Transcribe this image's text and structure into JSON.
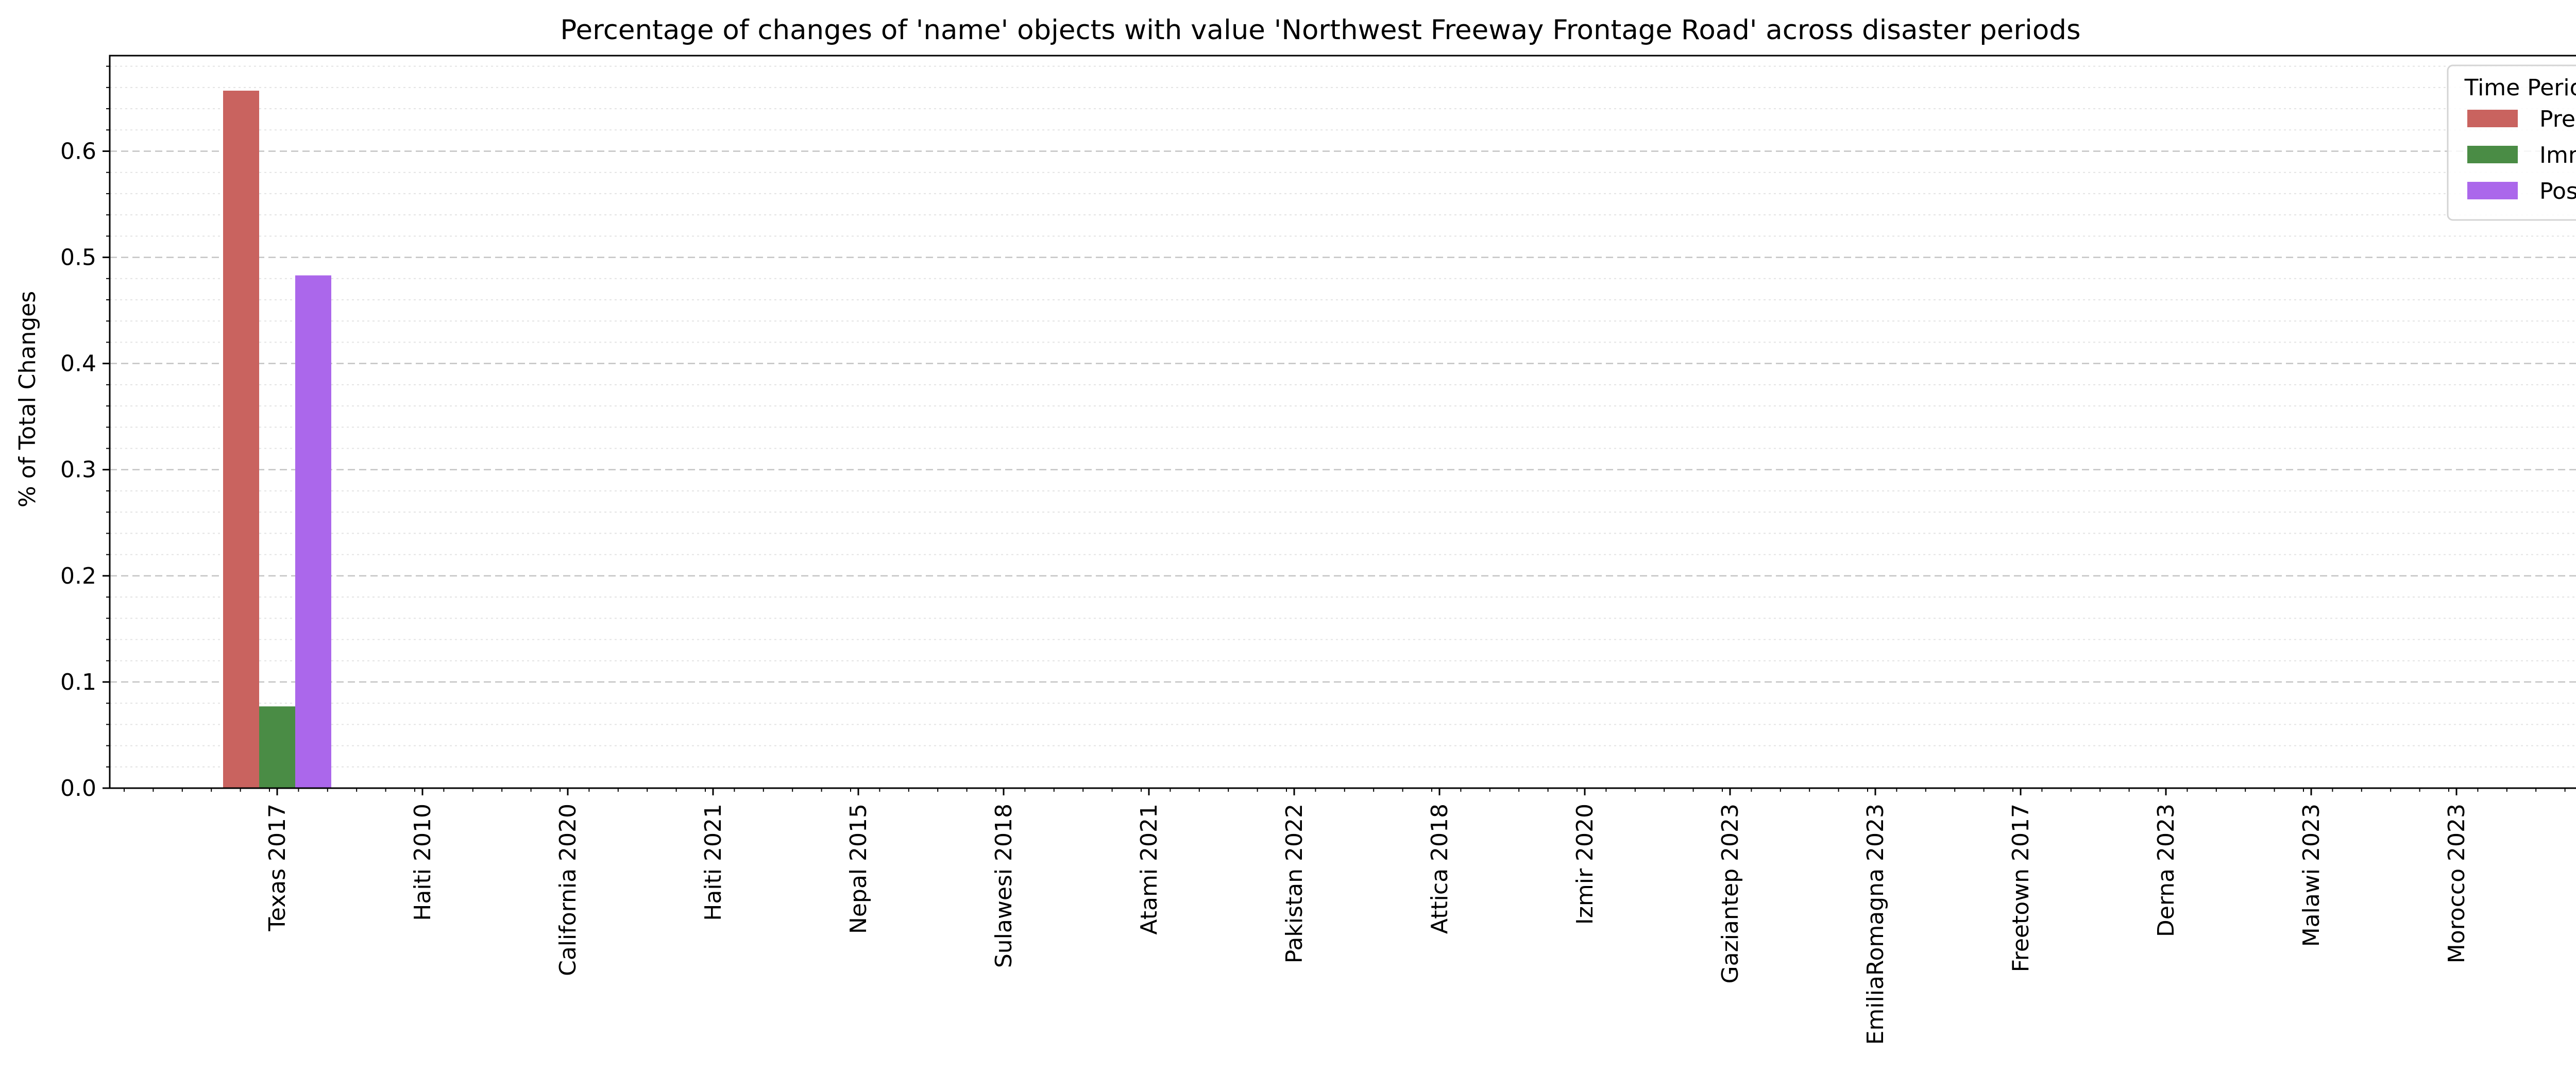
{
  "chart_data": {
    "type": "bar",
    "title": "Percentage of changes of 'name' objects with value 'Northwest Freeway Frontage Road' across disaster periods",
    "xlabel": "",
    "ylabel": "% of Total Changes",
    "ylim": [
      0,
      0.69
    ],
    "yticks": [
      "0.0",
      "0.1",
      "0.2",
      "0.3",
      "0.4",
      "0.5",
      "0.6"
    ],
    "grid": true,
    "legend_title": "Time Period",
    "legend_position": "top-right",
    "categories": [
      "Texas 2017",
      "Haiti 2010",
      "California 2020",
      "Haiti 2021",
      "Nepal 2015",
      "Sulawesi 2018",
      "Atami 2021",
      "Pakistan 2022",
      "Attica 2018",
      "Izmir 2020",
      "Gaziantep 2023",
      "EmiliaRomagna 2023",
      "Freetown 2017",
      "Derna 2023",
      "Malawi 2023",
      "Morocco 2023"
    ],
    "series": [
      {
        "name": "Pre",
        "color": "#c9635f",
        "values": [
          0.657,
          0,
          0,
          0,
          0,
          0,
          0,
          0,
          0,
          0,
          0,
          0,
          0,
          0,
          0,
          0
        ]
      },
      {
        "name": "Imm",
        "color": "#4a8c45",
        "values": [
          0.077,
          0,
          0,
          0,
          0,
          0,
          0,
          0,
          0,
          0,
          0,
          0,
          0,
          0,
          0,
          0
        ]
      },
      {
        "name": "Post",
        "color": "#ab67eb",
        "values": [
          0.483,
          0,
          0,
          0,
          0,
          0,
          0,
          0,
          0,
          0,
          0,
          0,
          0,
          0,
          0,
          0
        ]
      }
    ]
  }
}
